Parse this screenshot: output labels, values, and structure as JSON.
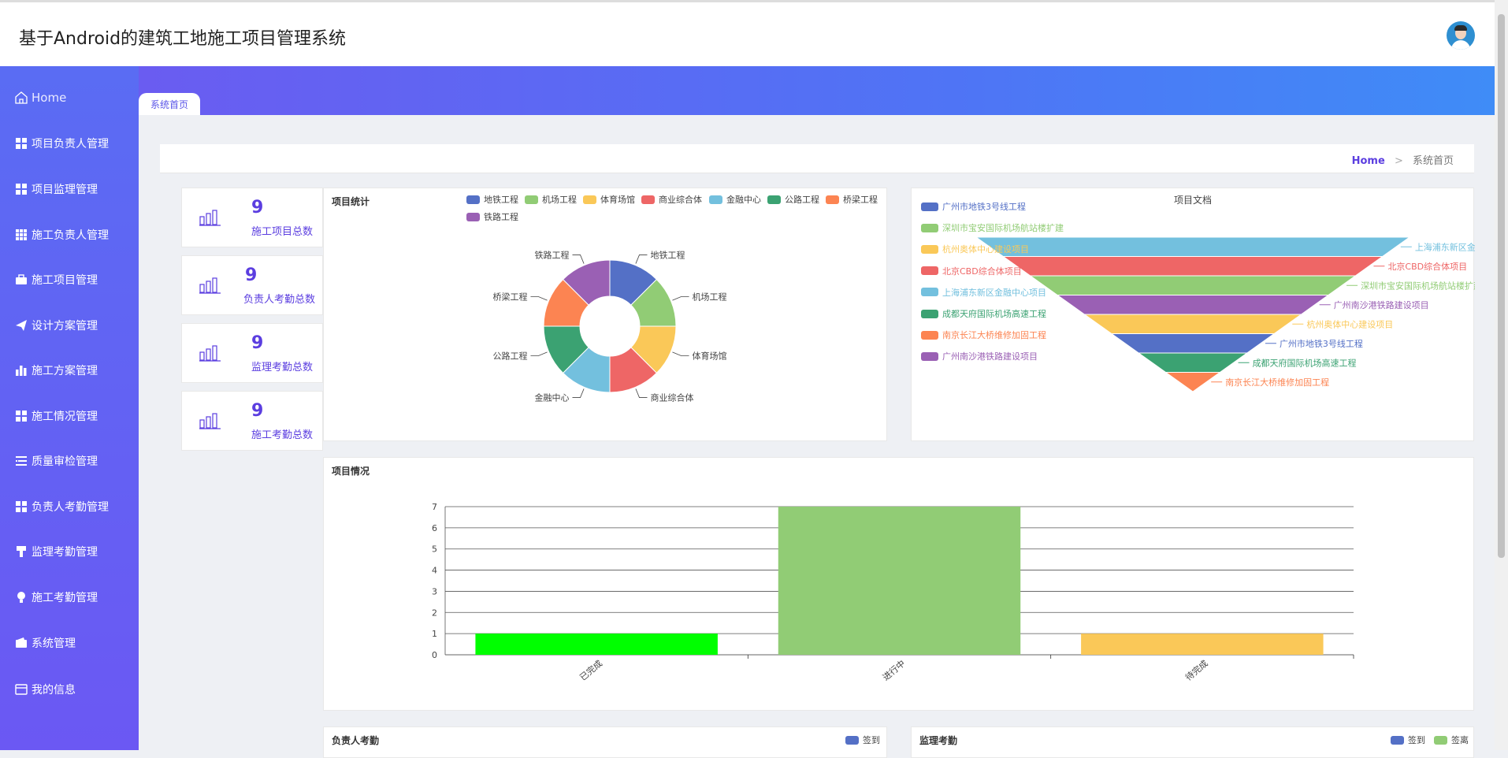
{
  "app": {
    "title": "基于Android的建筑工地施工项目管理系统"
  },
  "sidebar": {
    "home_label": "Home",
    "items": [
      {
        "label": "项目负责人管理",
        "icon": "grid-icon"
      },
      {
        "label": "项目监理管理",
        "icon": "grid-icon"
      },
      {
        "label": "施工负责人管理",
        "icon": "grid-nine-icon"
      },
      {
        "label": "施工项目管理",
        "icon": "briefcase-icon"
      },
      {
        "label": "设计方案管理",
        "icon": "paper-plane-icon"
      },
      {
        "label": "施工方案管理",
        "icon": "bar-chart-icon"
      },
      {
        "label": "施工情况管理",
        "icon": "grid-icon"
      },
      {
        "label": "质量审检管理",
        "icon": "list-icon"
      },
      {
        "label": "负责人考勤管理",
        "icon": "grid-icon"
      },
      {
        "label": "监理考勤管理",
        "icon": "brush-icon"
      },
      {
        "label": "施工考勤管理",
        "icon": "bulb-icon"
      },
      {
        "label": "系统管理",
        "icon": "wallet-icon"
      },
      {
        "label": "我的信息",
        "icon": "id-card-icon"
      }
    ]
  },
  "tabs": {
    "active": "系统首页"
  },
  "breadcrumb": {
    "home": "Home",
    "separator": ">",
    "current": "系统首页"
  },
  "stats": [
    {
      "value": "9",
      "label": "施工项目总数"
    },
    {
      "value": "9",
      "label": "负责人考勤总数"
    },
    {
      "value": "9",
      "label": "监理考勤总数"
    },
    {
      "value": "9",
      "label": "施工考勤总数"
    }
  ],
  "colors": {
    "accent": "#5b3ee0",
    "palette": [
      "#5470c6",
      "#91cc75",
      "#fac858",
      "#ee6666",
      "#73c0de",
      "#3ba272",
      "#fc8452",
      "#9a60b4"
    ],
    "bar_colors": [
      "#00ff00",
      "#91cc75",
      "#fac858"
    ]
  },
  "panels": {
    "pie_title": "项目统计",
    "funnel_title": "项目文档",
    "bar_title": "项目情况",
    "bottom_left_title": "负责人考勤",
    "bottom_right_title": "监理考勤",
    "bottom_left_legend": [
      "签到"
    ],
    "bottom_right_legend": [
      "签到",
      "签离"
    ]
  },
  "chart_data": [
    {
      "type": "pie",
      "title": "项目统计",
      "donut": true,
      "labels": [
        "地铁工程",
        "机场工程",
        "体育场馆",
        "商业综合体",
        "金融中心",
        "公路工程",
        "桥梁工程",
        "铁路工程"
      ],
      "values": [
        1,
        1,
        1,
        1,
        1,
        1,
        1,
        1
      ],
      "legend_position": "top-right"
    },
    {
      "type": "funnel",
      "title": "项目文档",
      "labels": [
        "上海浦东新区金融中心项目",
        "北京CBD综合体项目",
        "深圳市宝安国际机场航站楼扩建",
        "广州南沙港铁路建设项目",
        "杭州奥体中心建设项目",
        "广州市地铁3号线工程",
        "成都天府国际机场高速工程",
        "南京长江大桥维修加固工程"
      ],
      "legend": [
        "广州市地铁3号线工程",
        "深圳市宝安国际机场航站楼扩建",
        "杭州奥体中心建设项目",
        "北京CBD综合体项目",
        "上海浦东新区金融中心项目",
        "成都天府国际机场高速工程",
        "南京长江大桥维修加固工程",
        "广州南沙港铁路建设项目"
      ],
      "legend_position": "left"
    },
    {
      "type": "bar",
      "title": "项目情况",
      "categories": [
        "已完成",
        "进行中",
        "待完成"
      ],
      "values": [
        1,
        7,
        1
      ],
      "ylim": [
        0,
        7
      ],
      "yticks": [
        0,
        1,
        2,
        3,
        4,
        5,
        6,
        7
      ],
      "grid": true
    }
  ]
}
